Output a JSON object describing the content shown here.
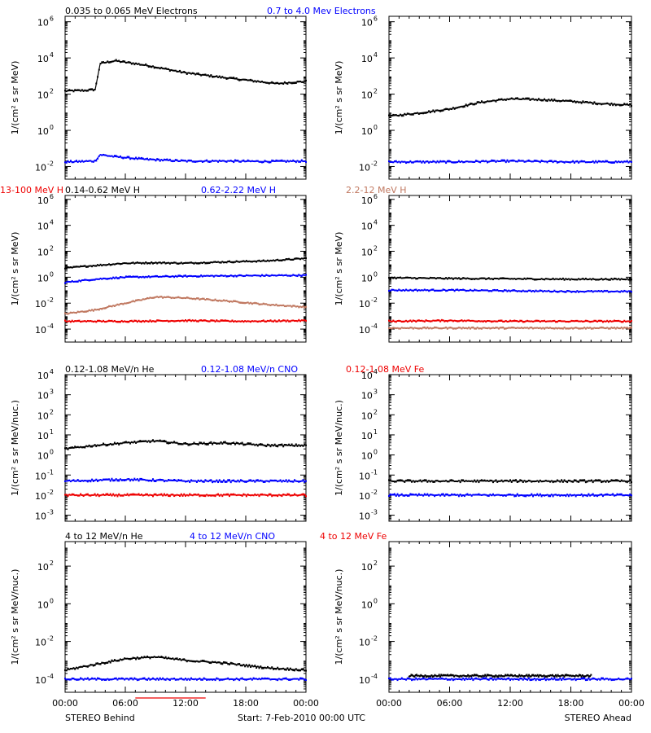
{
  "chart_data": [
    {
      "type": "scatter",
      "panel": "electrons-behind",
      "ylabel": "1/(cm² s sr MeV)",
      "log_scale": true,
      "ylim": [
        0.002,
        2000000
      ],
      "y_ticks": [
        {
          "v": 0.01,
          "m": "10",
          "e": "-2"
        },
        {
          "v": 1,
          "m": "10",
          "e": "0"
        },
        {
          "v": 100,
          "m": "10",
          "e": "2"
        },
        {
          "v": 10000,
          "m": "10",
          "e": "4"
        },
        {
          "v": 1000000,
          "m": "10",
          "e": "6"
        }
      ],
      "x_tick_labels": [],
      "series": [
        {
          "name": "0.035 to 0.065 MeV Electrons",
          "color": "#000000",
          "points": [
            [
              0,
              150
            ],
            [
              2,
              160
            ],
            [
              3,
              180
            ],
            [
              3.5,
              5000
            ],
            [
              5,
              7000
            ],
            [
              8,
              4000
            ],
            [
              12,
              1500
            ],
            [
              16,
              800
            ],
            [
              20,
              450
            ],
            [
              21,
              380
            ],
            [
              24,
              500
            ]
          ]
        },
        {
          "name": "0.7 to 4.0 Mev Electrons",
          "color": "#0000ff",
          "points": [
            [
              0,
              0.018
            ],
            [
              3,
              0.02
            ],
            [
              3.5,
              0.045
            ],
            [
              5,
              0.035
            ],
            [
              8,
              0.025
            ],
            [
              12,
              0.02
            ],
            [
              16,
              0.02
            ],
            [
              20,
              0.019
            ],
            [
              24,
              0.02
            ]
          ]
        }
      ]
    },
    {
      "type": "scatter",
      "panel": "electrons-ahead",
      "ylabel": "1/(cm² s sr MeV)",
      "log_scale": true,
      "ylim": [
        0.002,
        2000000
      ],
      "y_ticks": [
        {
          "v": 0.01,
          "m": "10",
          "e": "-2"
        },
        {
          "v": 1,
          "m": "10",
          "e": "0"
        },
        {
          "v": 100,
          "m": "10",
          "e": "2"
        },
        {
          "v": 10000,
          "m": "10",
          "e": "4"
        },
        {
          "v": 1000000,
          "m": "10",
          "e": "6"
        }
      ],
      "x_tick_labels": [],
      "series": [
        {
          "name": "",
          "color": "#000000",
          "points": [
            [
              0,
              6
            ],
            [
              3,
              9
            ],
            [
              6,
              15
            ],
            [
              9,
              35
            ],
            [
              12,
              55
            ],
            [
              15,
              50
            ],
            [
              18,
              40
            ],
            [
              21,
              30
            ],
            [
              24,
              25
            ]
          ]
        },
        {
          "name": "",
          "color": "#0000ff",
          "points": [
            [
              0,
              0.018
            ],
            [
              6,
              0.018
            ],
            [
              12,
              0.02
            ],
            [
              18,
              0.018
            ],
            [
              24,
              0.018
            ]
          ]
        }
      ]
    },
    {
      "type": "scatter",
      "panel": "protons-behind",
      "ylabel": "1/(cm² s sr MeV)",
      "log_scale": true,
      "ylim": [
        1e-05,
        2000000
      ],
      "y_ticks": [
        {
          "v": 0.0001,
          "m": "10",
          "e": "-4"
        },
        {
          "v": 0.01,
          "m": "10",
          "e": "-2"
        },
        {
          "v": 1,
          "m": "10",
          "e": "0"
        },
        {
          "v": 100,
          "m": "10",
          "e": "2"
        },
        {
          "v": 10000,
          "m": "10",
          "e": "4"
        },
        {
          "v": 1000000,
          "m": "10",
          "e": "6"
        }
      ],
      "x_tick_labels": [],
      "series": [
        {
          "name": "0.14-0.62 MeV H",
          "color": "#000000",
          "points": [
            [
              0,
              5
            ],
            [
              3,
              8
            ],
            [
              6,
              12
            ],
            [
              9,
              13
            ],
            [
              12,
              12
            ],
            [
              16,
              15
            ],
            [
              20,
              18
            ],
            [
              24,
              28
            ]
          ]
        },
        {
          "name": "0.62-2.22 MeV H",
          "color": "#0000ff",
          "points": [
            [
              0,
              0.4
            ],
            [
              3,
              0.7
            ],
            [
              6,
              1
            ],
            [
              12,
              1.2
            ],
            [
              18,
              1.3
            ],
            [
              24,
              1.4
            ]
          ]
        },
        {
          "name": "2.2-12 MeV H",
          "color": "#c07860",
          "points": [
            [
              0,
              0.0015
            ],
            [
              3,
              0.003
            ],
            [
              6,
              0.01
            ],
            [
              9,
              0.03
            ],
            [
              12,
              0.025
            ],
            [
              16,
              0.015
            ],
            [
              20,
              0.008
            ],
            [
              24,
              0.005
            ]
          ]
        },
        {
          "name": "13-100 MeV H",
          "color": "#ee0000",
          "points": [
            [
              0,
              0.0004
            ],
            [
              6,
              0.0004
            ],
            [
              12,
              0.00045
            ],
            [
              18,
              0.0004
            ],
            [
              24,
              0.00045
            ]
          ]
        }
      ]
    },
    {
      "type": "scatter",
      "panel": "protons-ahead",
      "ylabel": "1/(cm² s sr MeV)",
      "log_scale": true,
      "ylim": [
        1e-05,
        2000000
      ],
      "y_ticks": [
        {
          "v": 0.0001,
          "m": "10",
          "e": "-4"
        },
        {
          "v": 0.01,
          "m": "10",
          "e": "-2"
        },
        {
          "v": 1,
          "m": "10",
          "e": "0"
        },
        {
          "v": 100,
          "m": "10",
          "e": "2"
        },
        {
          "v": 10000,
          "m": "10",
          "e": "4"
        },
        {
          "v": 1000000,
          "m": "10",
          "e": "6"
        }
      ],
      "x_tick_labels": [],
      "series": [
        {
          "name": "",
          "color": "#000000",
          "points": [
            [
              0,
              0.9
            ],
            [
              6,
              0.8
            ],
            [
              12,
              0.75
            ],
            [
              18,
              0.7
            ],
            [
              24,
              0.7
            ]
          ]
        },
        {
          "name": "",
          "color": "#0000ff",
          "points": [
            [
              0,
              0.1
            ],
            [
              6,
              0.1
            ],
            [
              12,
              0.09
            ],
            [
              18,
              0.08
            ],
            [
              24,
              0.08
            ]
          ]
        },
        {
          "name": "",
          "color": "#ee0000",
          "points": [
            [
              0,
              0.0004
            ],
            [
              6,
              0.00045
            ],
            [
              12,
              0.0004
            ],
            [
              18,
              0.0004
            ],
            [
              24,
              0.0004
            ]
          ]
        },
        {
          "name": "",
          "color": "#c07860",
          "points": [
            [
              0,
              0.00012
            ],
            [
              12,
              0.00012
            ],
            [
              24,
              0.00012
            ]
          ]
        }
      ]
    },
    {
      "type": "scatter",
      "panel": "heavy-ions-low-behind",
      "ylabel": "1/(cm² s sr MeV/nuc.)",
      "log_scale": true,
      "ylim": [
        0.0005,
        10000
      ],
      "y_ticks": [
        {
          "v": 0.001,
          "m": "10",
          "e": "-3"
        },
        {
          "v": 0.01,
          "m": "10",
          "e": "-2"
        },
        {
          "v": 0.1,
          "m": "10",
          "e": "-1"
        },
        {
          "v": 1,
          "m": "10",
          "e": "0"
        },
        {
          "v": 10,
          "m": "10",
          "e": "1"
        },
        {
          "v": 100,
          "m": "10",
          "e": "2"
        },
        {
          "v": 1000,
          "m": "10",
          "e": "3"
        },
        {
          "v": 10000,
          "m": "10",
          "e": "4"
        }
      ],
      "x_tick_labels": [],
      "series": [
        {
          "name": "0.12-1.08 MeV/n He",
          "color": "#000000",
          "points": [
            [
              0,
              2
            ],
            [
              3,
              3
            ],
            [
              6,
              4
            ],
            [
              9,
              5
            ],
            [
              12,
              3.5
            ],
            [
              16,
              4
            ],
            [
              20,
              3
            ],
            [
              24,
              3
            ]
          ]
        },
        {
          "name": "0.12-1.08 MeV/n CNO",
          "color": "#0000ff",
          "points": [
            [
              0,
              0.05
            ],
            [
              6,
              0.06
            ],
            [
              12,
              0.05
            ],
            [
              18,
              0.05
            ],
            [
              24,
              0.05
            ]
          ]
        },
        {
          "name": "0.12-1.08 MeV Fe",
          "color": "#ee0000",
          "points": [
            [
              0,
              0.01
            ],
            [
              6,
              0.01
            ],
            [
              12,
              0.01
            ],
            [
              18,
              0.01
            ],
            [
              24,
              0.01
            ]
          ]
        }
      ]
    },
    {
      "type": "scatter",
      "panel": "heavy-ions-low-ahead",
      "ylabel": "1/(cm² s sr MeV/nuc.)",
      "log_scale": true,
      "ylim": [
        0.0005,
        10000
      ],
      "y_ticks": [
        {
          "v": 0.001,
          "m": "10",
          "e": "-3"
        },
        {
          "v": 0.01,
          "m": "10",
          "e": "-2"
        },
        {
          "v": 0.1,
          "m": "10",
          "e": "-1"
        },
        {
          "v": 1,
          "m": "10",
          "e": "0"
        },
        {
          "v": 10,
          "m": "10",
          "e": "1"
        },
        {
          "v": 100,
          "m": "10",
          "e": "2"
        },
        {
          "v": 1000,
          "m": "10",
          "e": "3"
        },
        {
          "v": 10000,
          "m": "10",
          "e": "4"
        }
      ],
      "x_tick_labels": [],
      "series": [
        {
          "name": "",
          "color": "#000000",
          "points": [
            [
              0,
              0.05
            ],
            [
              6,
              0.05
            ],
            [
              12,
              0.05
            ],
            [
              18,
              0.05
            ],
            [
              24,
              0.05
            ]
          ]
        },
        {
          "name": "",
          "color": "#0000ff",
          "points": [
            [
              0,
              0.01
            ],
            [
              6,
              0.01
            ],
            [
              12,
              0.01
            ],
            [
              18,
              0.01
            ],
            [
              24,
              0.01
            ]
          ]
        }
      ]
    },
    {
      "type": "scatter",
      "panel": "heavy-ions-high-behind",
      "ylabel": "1/(cm² s sr MeV/nuc.)",
      "log_scale": true,
      "ylim": [
        2e-05,
        2000
      ],
      "y_ticks": [
        {
          "v": 0.0001,
          "m": "10",
          "e": "-4"
        },
        {
          "v": 0.01,
          "m": "10",
          "e": "-2"
        },
        {
          "v": 1,
          "m": "10",
          "e": "0"
        },
        {
          "v": 100,
          "m": "10",
          "e": "2"
        }
      ],
      "x_tick_labels": [
        "00:00",
        "06:00",
        "12:00",
        "18:00",
        "00:00"
      ],
      "series": [
        {
          "name": "4 to 12 MeV/n He",
          "color": "#000000",
          "points": [
            [
              0,
              0.0003
            ],
            [
              3,
              0.0006
            ],
            [
              6,
              0.0012
            ],
            [
              9,
              0.0015
            ],
            [
              12,
              0.001
            ],
            [
              16,
              0.0007
            ],
            [
              20,
              0.0004
            ],
            [
              24,
              0.0003
            ]
          ]
        },
        {
          "name": "4 to 12 MeV/n CNO",
          "color": "#0000ff",
          "points": [
            [
              0,
              0.0001
            ],
            [
              6,
              0.0001
            ],
            [
              12,
              0.0001
            ],
            [
              18,
              0.0001
            ],
            [
              24,
              0.0001
            ]
          ]
        },
        {
          "name": "4 to 12 MeV Fe",
          "color": "#ee0000",
          "points": [
            [
              7,
              1e-05
            ],
            [
              14,
              1e-05
            ]
          ]
        }
      ]
    },
    {
      "type": "scatter",
      "panel": "heavy-ions-high-ahead",
      "ylabel": "1/(cm² s sr MeV/nuc.)",
      "log_scale": true,
      "ylim": [
        2e-05,
        2000
      ],
      "y_ticks": [
        {
          "v": 0.0001,
          "m": "10",
          "e": "-4"
        },
        {
          "v": 0.01,
          "m": "10",
          "e": "-2"
        },
        {
          "v": 1,
          "m": "10",
          "e": "0"
        },
        {
          "v": 100,
          "m": "10",
          "e": "2"
        }
      ],
      "x_tick_labels": [
        "00:00",
        "06:00",
        "12:00",
        "18:00",
        "00:00"
      ],
      "series": [
        {
          "name": "",
          "color": "#000000",
          "points": [
            [
              2,
              0.00015
            ],
            [
              8,
              0.00015
            ],
            [
              14,
              0.00015
            ],
            [
              20,
              0.00015
            ]
          ]
        },
        {
          "name": "",
          "color": "#0000ff",
          "points": [
            [
              0,
              0.0001
            ],
            [
              6,
              0.0001
            ],
            [
              12,
              0.0001
            ],
            [
              18,
              0.0001
            ],
            [
              24,
              0.0001
            ]
          ]
        }
      ]
    }
  ],
  "footer": {
    "left": "STEREO Behind",
    "center": "Start:  7-Feb-2010 00:00 UTC",
    "right": "STEREO Ahead"
  }
}
